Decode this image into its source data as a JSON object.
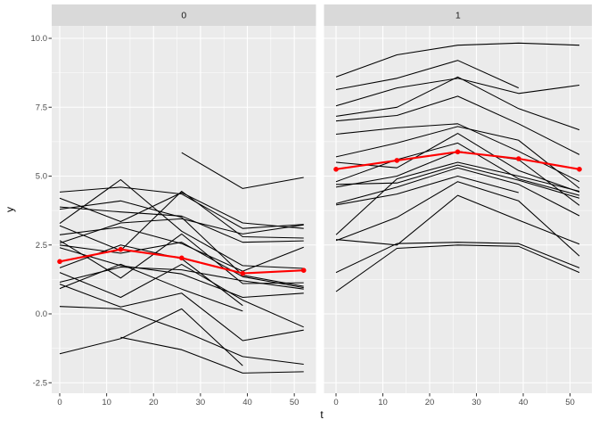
{
  "figure": {
    "background": "#FFFFFF"
  },
  "chart_data": {
    "type": "line",
    "title": "",
    "xlabel": "t",
    "ylabel": "y",
    "legend": "none",
    "grid": "on",
    "facet_variable_values": [
      "0",
      "1"
    ],
    "x": [
      0,
      13,
      26,
      39,
      52
    ],
    "xlim": [
      -2,
      54.5
    ],
    "ylim": [
      -2.9,
      10.4
    ],
    "x_ticks": [
      0,
      10,
      20,
      30,
      40,
      50
    ],
    "x_tick_labels": [
      "0",
      "10",
      "20",
      "30",
      "40",
      "50"
    ],
    "y_ticks": [
      10,
      7.5,
      5,
      2.5,
      0,
      -2.5
    ],
    "y_tick_labels": [
      "10.0",
      "7.5",
      "5.0",
      "2.5",
      "0.0",
      "-2.5"
    ],
    "style": {
      "panel_background": "#EBEBEB",
      "strip_background": "#D9D9D9",
      "grid_color": "#FFFFFF",
      "series_color": "#000000",
      "mean_color": "#FF0000",
      "tick_label_color": "#4D4D4D",
      "tick_mark_color": "#333333"
    },
    "facets": [
      {
        "label": "0",
        "mean": [
          1.9,
          2.34,
          2.03,
          1.47,
          1.58
        ],
        "series": [
          [
            4.42,
            4.6,
            4.35,
            3.1,
            3.25
          ],
          [
            4.2,
            3.35,
            4.4,
            3.3,
            3.1
          ],
          [
            3.88,
            3.7,
            3.55,
            2.6,
            2.65
          ],
          [
            3.8,
            4.1,
            3.5,
            1.4,
            1.0
          ],
          [
            3.28,
            4.87,
            3.0,
            1.75,
            1.65
          ],
          [
            3.2,
            2.3,
            4.45,
            2.8,
            2.75
          ],
          [
            2.87,
            3.15,
            2.55,
            1.55,
            2.42
          ],
          [
            2.66,
            1.3,
            2.9,
            1.1,
            1.13
          ],
          [
            2.57,
            3.3,
            3.45,
            2.9,
            3.23
          ],
          [
            2.5,
            2.2,
            2.6,
            1.35,
            0.95
          ],
          [
            2.4,
            1.75,
            1.45,
            0.6,
            0.75
          ],
          [
            1.67,
            2.5,
            2.0,
            0.3,
            null
          ],
          [
            1.5,
            0.6,
            1.8,
            0.5,
            -0.48
          ],
          [
            1.15,
            1.7,
            1.6,
            1.2,
            0.9
          ],
          [
            1.08,
            0.25,
            0.75,
            -0.97,
            -0.59
          ],
          [
            0.92,
            1.8,
            0.9,
            0.1,
            null
          ],
          [
            0.27,
            0.18,
            -0.6,
            -1.55,
            -1.83
          ],
          [
            -1.45,
            -0.9,
            0.18,
            -1.88,
            null
          ],
          [
            null,
            -0.85,
            -1.3,
            -2.15,
            -2.1
          ],
          [
            null,
            null,
            5.85,
            4.55,
            4.95
          ]
        ]
      },
      {
        "label": "1",
        "mean": [
          5.25,
          5.57,
          5.88,
          5.63,
          5.25
        ],
        "series": [
          [
            8.6,
            9.4,
            9.75,
            9.83,
            9.75
          ],
          [
            8.14,
            8.55,
            9.2,
            8.2,
            null
          ],
          [
            7.55,
            8.2,
            8.55,
            8.0,
            8.3
          ],
          [
            7.17,
            7.5,
            8.6,
            7.45,
            6.68
          ],
          [
            7.0,
            7.2,
            7.9,
            6.9,
            5.78
          ],
          [
            6.52,
            6.75,
            6.9,
            5.9,
            4.8
          ],
          [
            5.7,
            6.2,
            6.8,
            6.3,
            4.56
          ],
          [
            5.5,
            5.3,
            6.55,
            5.2,
            4.42
          ],
          [
            4.8,
            5.6,
            6.2,
            4.9,
            4.3
          ],
          [
            4.7,
            4.75,
            5.4,
            4.85,
            4.2
          ],
          [
            4.6,
            5.0,
            5.9,
            5.6,
            3.94
          ],
          [
            4.0,
            4.6,
            5.3,
            4.7,
            3.56
          ],
          [
            3.95,
            4.35,
            5.0,
            4.4,
            null
          ],
          [
            2.87,
            4.9,
            5.5,
            5.0,
            4.45
          ],
          [
            2.7,
            2.5,
            4.3,
            3.4,
            2.53
          ],
          [
            2.66,
            3.5,
            4.8,
            4.1,
            2.1
          ],
          [
            1.5,
            2.55,
            2.6,
            2.55,
            1.67
          ],
          [
            0.81,
            2.38,
            2.5,
            2.45,
            1.5
          ]
        ]
      }
    ]
  }
}
